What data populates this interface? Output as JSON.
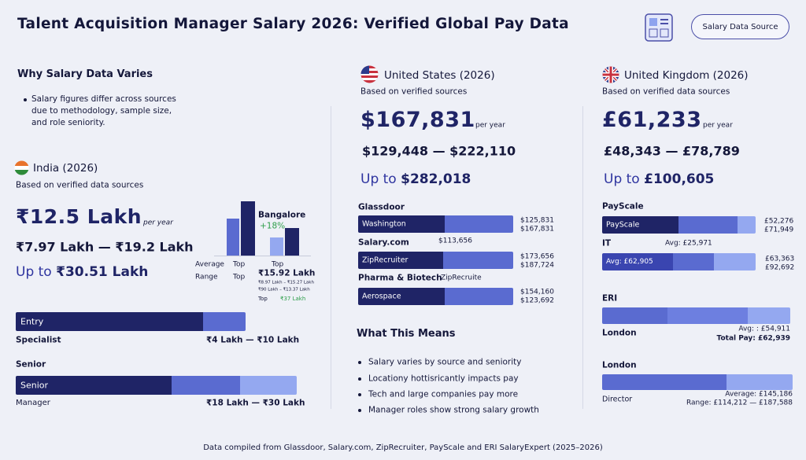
{
  "header": {
    "title": "Talent Acquisition Manager Salary 2026: Verified Global Pay Data",
    "button": "Salary Data Source"
  },
  "why": {
    "title": "Why Salary Data Varies",
    "text": "Salary figures differ across sources due to methodology, sample size, and role seniority."
  },
  "india": {
    "name": "India (2026)",
    "note": "Based on verified data sources",
    "median": "₹12.5 Lakh",
    "per_year": "per year",
    "range": "₹7.97 Lakh — ₹19.2 Lakh",
    "upto_label": "Up to",
    "upto": "₹30.51 Lakh",
    "mini": {
      "city": "Bangalore",
      "delta": "+18%",
      "labels": [
        "Average",
        "Top",
        "Top",
        "Range",
        "Top"
      ],
      "top_value": "₹15.92 Lakh",
      "small": [
        "₹8.97 Lakh – ₹15.27 Lakh",
        "₹90 Lakh – ₹13.37 Lakh"
      ],
      "top2_label": "Top",
      "top2": "₹37 Lakh"
    },
    "levels": [
      {
        "bar": "Entry",
        "role": "Specialist",
        "range": "₹4 Lakh — ₹10 Lakh"
      },
      {
        "heading": "Senior",
        "bar": "Senior",
        "role": "Manager",
        "range": "₹18 Lakh — ₹30 Lakh"
      }
    ]
  },
  "us": {
    "name": "United States  (2026)",
    "note": "Based on verified sources",
    "median": "$167,831",
    "per_year": "per year",
    "range": "$129,448 — $222,110",
    "upto_label": "Up to",
    "upto": "$282,018",
    "sources": [
      {
        "heading": "Glassdoor",
        "bar": "Washington",
        "values": [
          "$125,831",
          "$167,831"
        ]
      },
      {
        "heading": "Salary.com",
        "aside": "$113,656",
        "bar": "ZipRecruiter",
        "values": [
          "$173,656",
          "$187,724"
        ]
      },
      {
        "heading": "Pharma & Biotech",
        "aside": "ZipRecruite",
        "bar": "Aerospace",
        "values": [
          "$154,160",
          "$123,692"
        ]
      }
    ],
    "means": {
      "title": "What This Means",
      "items": [
        "Salary varies by source and seniority",
        "Locationy hottisricantly impacts pay",
        "Tech and large companies pay more",
        "Manager roles show strong salary growth"
      ]
    }
  },
  "uk": {
    "name": "United Kingdom (2026)",
    "note": "Based on verified data sources",
    "median": "£61,233",
    "per_year": "per year",
    "range": "£48,343 — £78,789",
    "upto_label": "Up to",
    "upto": "£100,605",
    "payscale": {
      "heading": "PayScale",
      "bar": "PayScale",
      "values": [
        "£52,276",
        "£71,949"
      ],
      "sub": "IT",
      "sub_avg": "Avg: £25,971",
      "bar2": "Avg: £62,905",
      "values2": [
        "£63,363",
        "£92,692"
      ]
    },
    "eri": {
      "heading": "ERI",
      "city": "London",
      "avg": "Avg: : £54,911",
      "total": "Total Pay: £62,939"
    },
    "london": {
      "heading": "London",
      "role": "Director",
      "avg": "Average: £145,186",
      "range": "Range: £114,212 — £187,588"
    }
  },
  "footer": "Data compiled from Glassdoor, Salary.com, ZipRecruiter, PayScale and ERI SalaryExpert (2025–2026)"
}
